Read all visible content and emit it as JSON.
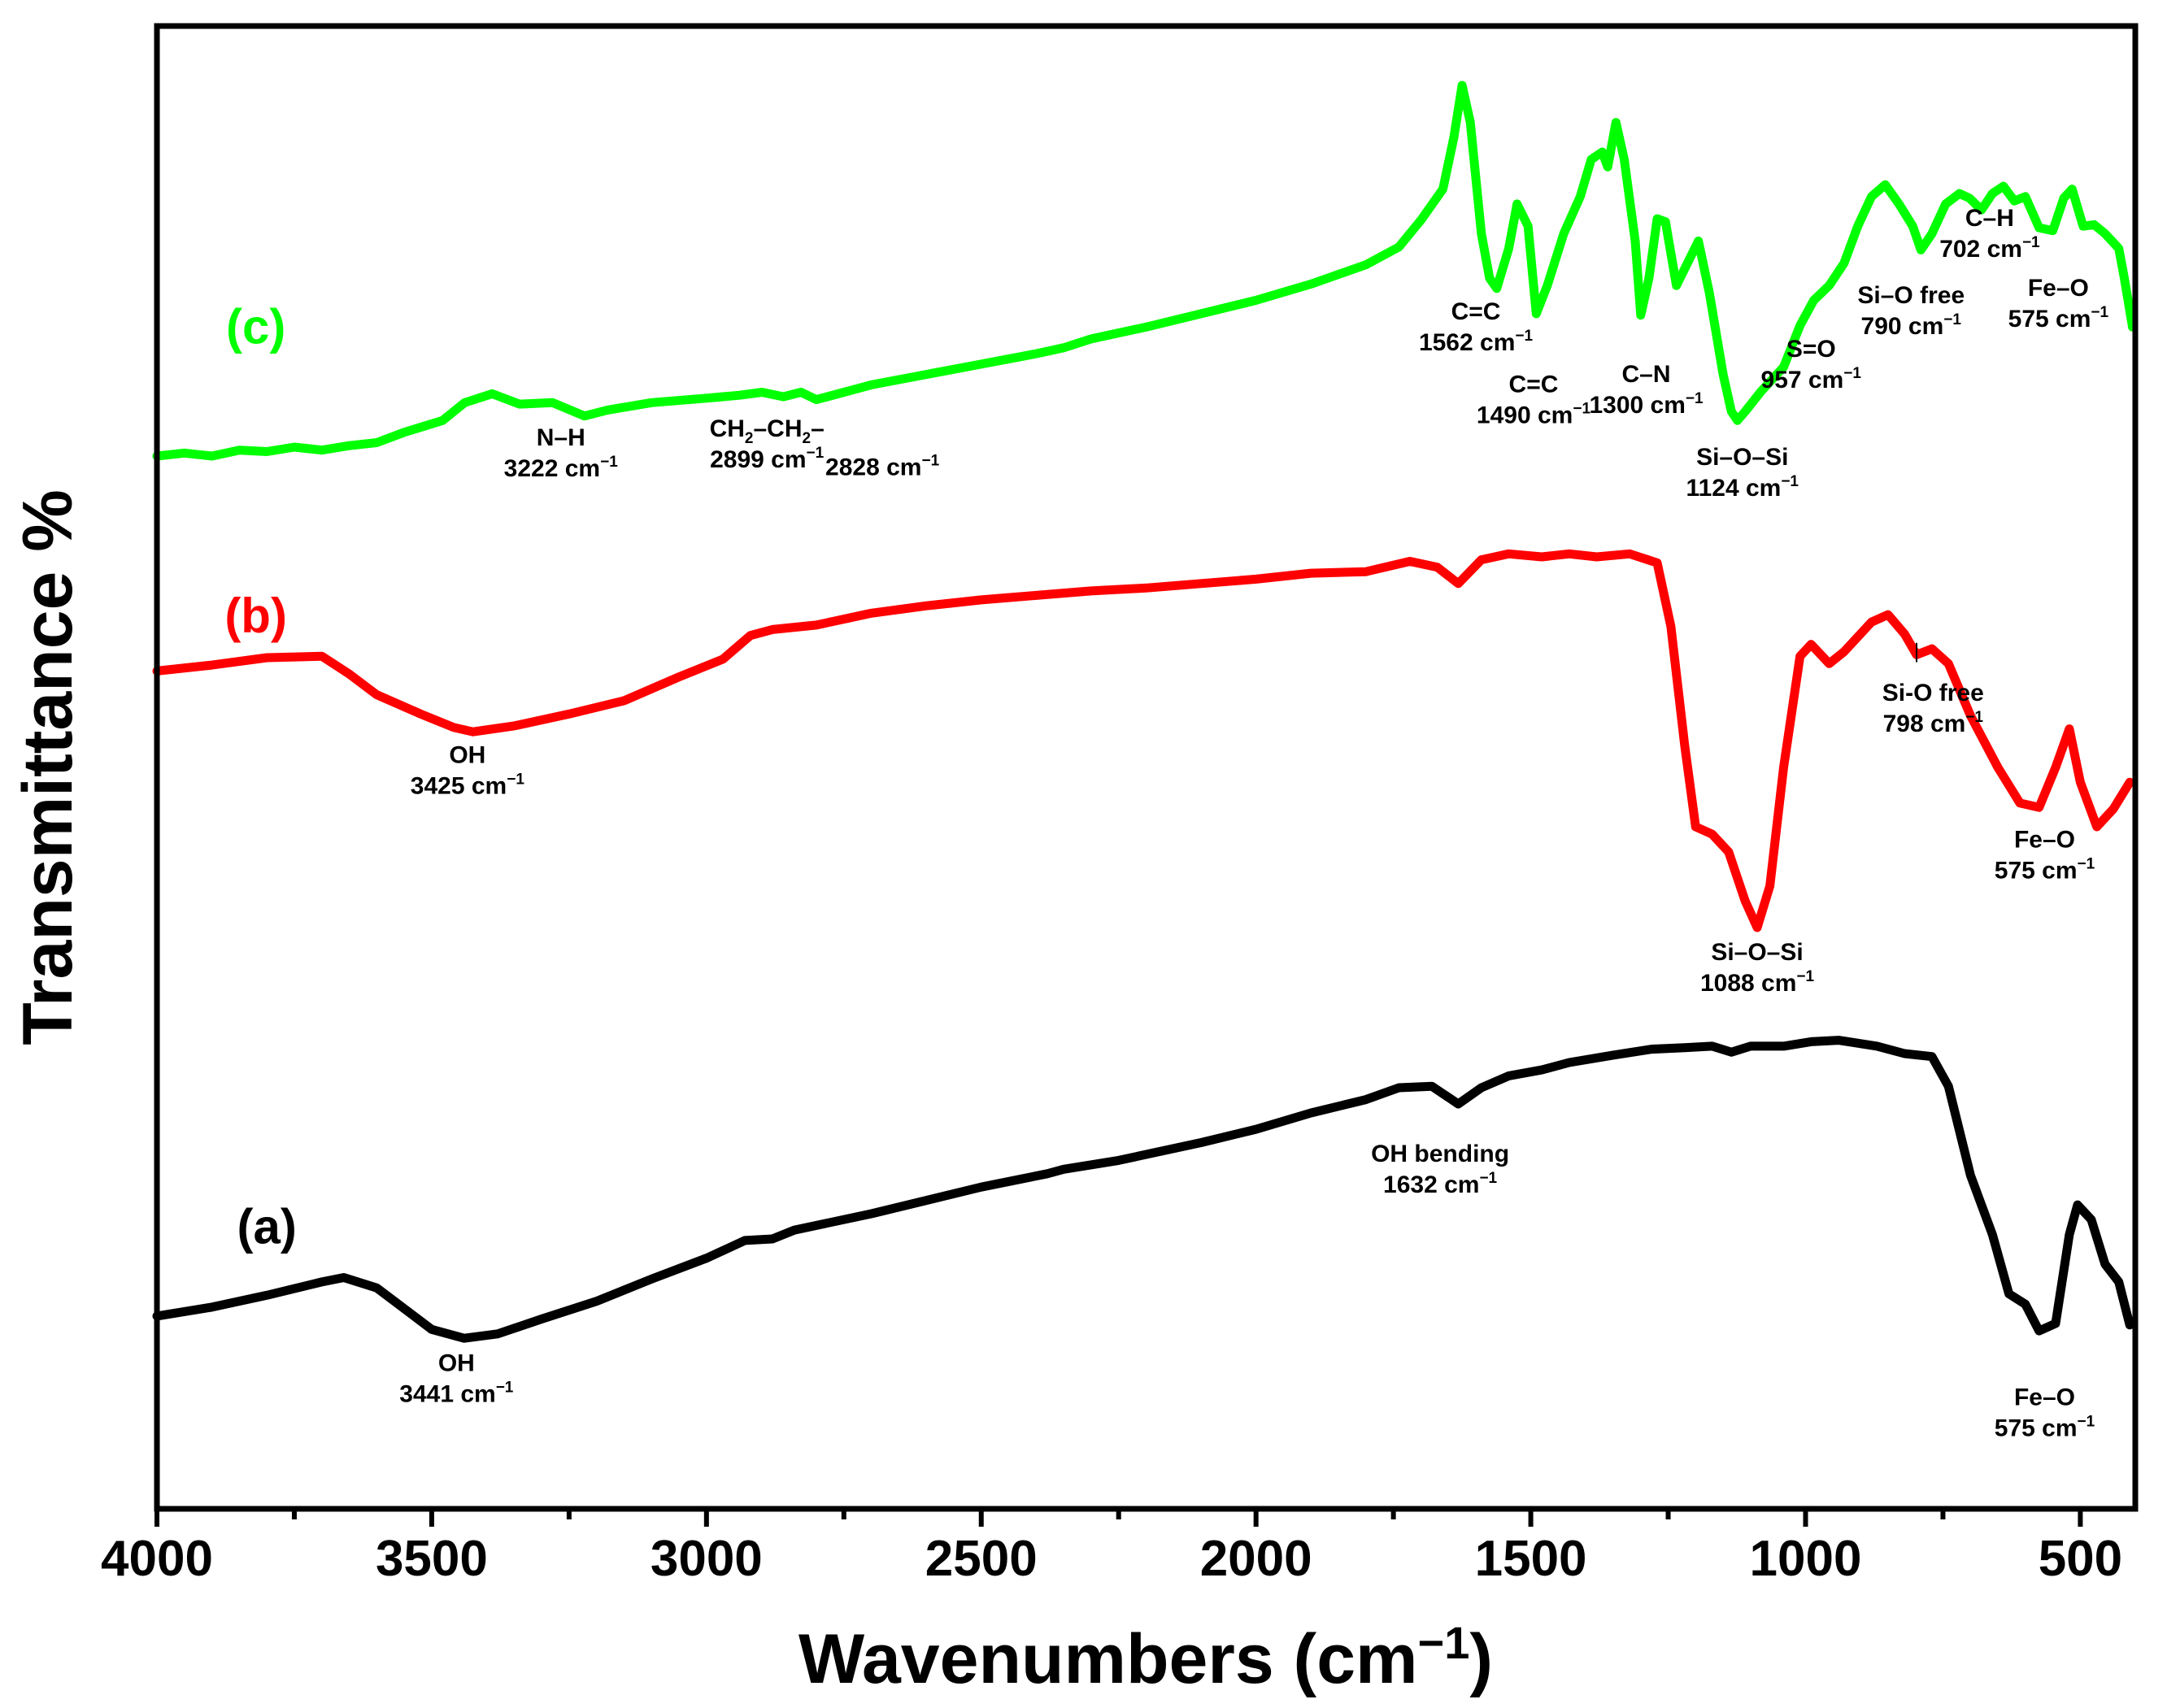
{
  "chart_data": {
    "type": "line",
    "title": "",
    "xlabel": "Wavenumbers (cm",
    "xlabel_sup": "−1",
    "xlabel_tail": ")",
    "ylabel": "Transmittance %",
    "xlim": [
      4000,
      400
    ],
    "ylim": [
      0,
      100
    ],
    "x_ticks": [
      4000,
      3500,
      3000,
      2500,
      2000,
      1500,
      1000,
      500
    ],
    "x_minor_step": 250,
    "yticks_visible": false,
    "grid": false,
    "legend": "none",
    "series": [
      {
        "name": "(a)",
        "color": "#000000",
        "points": [
          [
            4000,
            13.0
          ],
          [
            3900,
            13.6
          ],
          [
            3800,
            14.4
          ],
          [
            3700,
            15.3
          ],
          [
            3660,
            15.6
          ],
          [
            3600,
            14.9
          ],
          [
            3550,
            13.5
          ],
          [
            3500,
            12.1
          ],
          [
            3441,
            11.5
          ],
          [
            3380,
            11.8
          ],
          [
            3300,
            12.8
          ],
          [
            3200,
            14.0
          ],
          [
            3100,
            15.5
          ],
          [
            3000,
            16.9
          ],
          [
            2930,
            18.1
          ],
          [
            2880,
            18.2
          ],
          [
            2840,
            18.8
          ],
          [
            2700,
            19.9
          ],
          [
            2600,
            20.8
          ],
          [
            2500,
            21.7
          ],
          [
            2380,
            22.6
          ],
          [
            2350,
            22.9
          ],
          [
            2250,
            23.5
          ],
          [
            2100,
            24.7
          ],
          [
            2000,
            25.6
          ],
          [
            1900,
            26.7
          ],
          [
            1800,
            27.6
          ],
          [
            1740,
            28.4
          ],
          [
            1680,
            28.5
          ],
          [
            1632,
            27.3
          ],
          [
            1590,
            28.4
          ],
          [
            1540,
            29.2
          ],
          [
            1480,
            29.6
          ],
          [
            1430,
            30.1
          ],
          [
            1350,
            30.6
          ],
          [
            1280,
            31.0
          ],
          [
            1220,
            31.1
          ],
          [
            1170,
            31.2
          ],
          [
            1135,
            30.8
          ],
          [
            1100,
            31.2
          ],
          [
            1040,
            31.2
          ],
          [
            990,
            31.5
          ],
          [
            940,
            31.6
          ],
          [
            870,
            31.2
          ],
          [
            820,
            30.7
          ],
          [
            770,
            30.5
          ],
          [
            740,
            28.5
          ],
          [
            700,
            22.5
          ],
          [
            660,
            18.5
          ],
          [
            630,
            14.5
          ],
          [
            600,
            13.8
          ],
          [
            575,
            12.0
          ],
          [
            545,
            12.5
          ],
          [
            520,
            18.5
          ],
          [
            505,
            20.5
          ],
          [
            480,
            19.5
          ],
          [
            455,
            16.5
          ],
          [
            430,
            15.3
          ],
          [
            410,
            12.4
          ]
        ]
      },
      {
        "name": "(b)",
        "color": "#ff0000",
        "points": [
          [
            4000,
            56.5
          ],
          [
            3900,
            56.9
          ],
          [
            3800,
            57.4
          ],
          [
            3700,
            57.5
          ],
          [
            3650,
            56.3
          ],
          [
            3600,
            54.9
          ],
          [
            3520,
            53.6
          ],
          [
            3460,
            52.7
          ],
          [
            3425,
            52.4
          ],
          [
            3350,
            52.8
          ],
          [
            3250,
            53.6
          ],
          [
            3150,
            54.5
          ],
          [
            3050,
            56.1
          ],
          [
            2970,
            57.3
          ],
          [
            2920,
            58.9
          ],
          [
            2880,
            59.3
          ],
          [
            2800,
            59.6
          ],
          [
            2700,
            60.4
          ],
          [
            2600,
            60.9
          ],
          [
            2500,
            61.3
          ],
          [
            2400,
            61.6
          ],
          [
            2300,
            61.9
          ],
          [
            2200,
            62.1
          ],
          [
            2100,
            62.4
          ],
          [
            2000,
            62.7
          ],
          [
            1900,
            63.1
          ],
          [
            1800,
            63.2
          ],
          [
            1720,
            63.9
          ],
          [
            1670,
            63.5
          ],
          [
            1632,
            62.4
          ],
          [
            1590,
            64.0
          ],
          [
            1540,
            64.4
          ],
          [
            1480,
            64.2
          ],
          [
            1430,
            64.4
          ],
          [
            1380,
            64.2
          ],
          [
            1320,
            64.4
          ],
          [
            1270,
            63.8
          ],
          [
            1245,
            59.5
          ],
          [
            1220,
            51.5
          ],
          [
            1200,
            46.0
          ],
          [
            1170,
            45.5
          ],
          [
            1140,
            44.3
          ],
          [
            1110,
            41.0
          ],
          [
            1088,
            39.2
          ],
          [
            1065,
            42.0
          ],
          [
            1040,
            50.0
          ],
          [
            1010,
            57.5
          ],
          [
            990,
            58.3
          ],
          [
            957,
            57.0
          ],
          [
            930,
            57.8
          ],
          [
            880,
            59.8
          ],
          [
            850,
            60.3
          ],
          [
            820,
            59.0
          ],
          [
            798,
            57.6
          ],
          [
            770,
            58.0
          ],
          [
            740,
            57.0
          ],
          [
            700,
            53.5
          ],
          [
            650,
            50.0
          ],
          [
            610,
            47.6
          ],
          [
            575,
            47.3
          ],
          [
            545,
            50.0
          ],
          [
            520,
            52.6
          ],
          [
            500,
            49.0
          ],
          [
            470,
            46.0
          ],
          [
            440,
            47.2
          ],
          [
            410,
            49.0
          ]
        ]
      },
      {
        "name": "(c)",
        "color": "#00ff00",
        "points": [
          [
            4000,
            71.0
          ],
          [
            3950,
            71.2
          ],
          [
            3900,
            71.0
          ],
          [
            3850,
            71.4
          ],
          [
            3800,
            71.3
          ],
          [
            3750,
            71.6
          ],
          [
            3700,
            71.4
          ],
          [
            3650,
            71.7
          ],
          [
            3600,
            71.9
          ],
          [
            3550,
            72.6
          ],
          [
            3480,
            73.4
          ],
          [
            3440,
            74.6
          ],
          [
            3390,
            75.2
          ],
          [
            3340,
            74.5
          ],
          [
            3280,
            74.6
          ],
          [
            3222,
            73.7
          ],
          [
            3180,
            74.1
          ],
          [
            3100,
            74.6
          ],
          [
            3000,
            74.9
          ],
          [
            2940,
            75.1
          ],
          [
            2899,
            75.3
          ],
          [
            2860,
            75.0
          ],
          [
            2828,
            75.3
          ],
          [
            2800,
            74.8
          ],
          [
            2700,
            75.8
          ],
          [
            2600,
            76.5
          ],
          [
            2500,
            77.2
          ],
          [
            2400,
            77.9
          ],
          [
            2350,
            78.3
          ],
          [
            2300,
            78.9
          ],
          [
            2200,
            79.7
          ],
          [
            2100,
            80.6
          ],
          [
            2000,
            81.5
          ],
          [
            1900,
            82.6
          ],
          [
            1800,
            83.9
          ],
          [
            1740,
            85.1
          ],
          [
            1700,
            86.9
          ],
          [
            1660,
            89.0
          ],
          [
            1640,
            92.5
          ],
          [
            1625,
            96.0
          ],
          [
            1610,
            93.5
          ],
          [
            1590,
            86.0
          ],
          [
            1575,
            83.0
          ],
          [
            1562,
            82.3
          ],
          [
            1540,
            85.0
          ],
          [
            1525,
            88.0
          ],
          [
            1505,
            86.5
          ],
          [
            1490,
            80.6
          ],
          [
            1470,
            82.5
          ],
          [
            1440,
            86.0
          ],
          [
            1410,
            88.5
          ],
          [
            1390,
            91.0
          ],
          [
            1370,
            91.5
          ],
          [
            1360,
            90.5
          ],
          [
            1345,
            93.5
          ],
          [
            1330,
            91.0
          ],
          [
            1310,
            85.5
          ],
          [
            1300,
            80.5
          ],
          [
            1285,
            83.0
          ],
          [
            1270,
            87.0
          ],
          [
            1255,
            86.8
          ],
          [
            1235,
            82.5
          ],
          [
            1215,
            84.0
          ],
          [
            1195,
            85.5
          ],
          [
            1175,
            82.0
          ],
          [
            1150,
            76.5
          ],
          [
            1135,
            74.0
          ],
          [
            1124,
            73.4
          ],
          [
            1110,
            74.0
          ],
          [
            1080,
            75.4
          ],
          [
            1040,
            77.0
          ],
          [
            1010,
            79.8
          ],
          [
            985,
            81.5
          ],
          [
            957,
            82.5
          ],
          [
            930,
            84.0
          ],
          [
            905,
            86.5
          ],
          [
            880,
            88.5
          ],
          [
            855,
            89.3
          ],
          [
            830,
            88.0
          ],
          [
            805,
            86.5
          ],
          [
            790,
            84.9
          ],
          [
            770,
            86.0
          ],
          [
            745,
            88.0
          ],
          [
            720,
            88.7
          ],
          [
            702,
            88.4
          ],
          [
            680,
            87.6
          ],
          [
            660,
            88.7
          ],
          [
            640,
            89.2
          ],
          [
            620,
            88.2
          ],
          [
            600,
            88.5
          ],
          [
            575,
            86.4
          ],
          [
            550,
            86.2
          ],
          [
            530,
            88.4
          ],
          [
            515,
            89.0
          ],
          [
            495,
            86.5
          ],
          [
            475,
            86.6
          ],
          [
            455,
            86.0
          ],
          [
            430,
            85.0
          ],
          [
            420,
            83.0
          ],
          [
            405,
            79.7
          ]
        ]
      }
    ],
    "series_labels": [
      {
        "id": "a",
        "text": "(a)",
        "color": "#000000",
        "x": 3800,
        "y": 17.9
      },
      {
        "id": "b",
        "text": "(b)",
        "color": "#ff0000",
        "x": 3820,
        "y": 59.1
      },
      {
        "id": "c",
        "text": "(c)",
        "color": "#00ff00",
        "x": 3820,
        "y": 78.6
      }
    ],
    "annotations": [
      {
        "id": "a-oh",
        "line1": "OH",
        "line2": "3441 cm",
        "sup": "−1",
        "x": 3455,
        "y": 9.3
      },
      {
        "id": "a-ohbend",
        "line1": "OH bending",
        "line2": "1632 cm",
        "sup": "−1",
        "x": 1665,
        "y": 23.4
      },
      {
        "id": "a-feo",
        "line1": "Fe–O",
        "line2": "575 cm",
        "sup": "−1",
        "x": 565,
        "y": 7.0
      },
      {
        "id": "b-oh",
        "line1": "OH",
        "line2": "3425 cm",
        "sup": "−1",
        "x": 3435,
        "y": 50.3
      },
      {
        "id": "b-siosi",
        "line1": "Si–O–Si",
        "line2": "1088 cm",
        "sup": "−1",
        "x": 1088,
        "y": 37.0
      },
      {
        "id": "b-sio",
        "line1": "Si-O free",
        "line2": "798 cm",
        "sup": "−1",
        "x": 768,
        "y": 54.5,
        "tick_x": 798,
        "tick_y0": 57.1,
        "tick_y1": 58.4
      },
      {
        "id": "b-feo",
        "line1": "Fe–O",
        "line2": "575 cm",
        "sup": "−1",
        "x": 565,
        "y": 44.6
      },
      {
        "id": "c-nh",
        "line1": "N–H",
        "line2": "3222 cm",
        "sup": "−1",
        "x": 3265,
        "y": 71.7
      },
      {
        "id": "c-ch2",
        "line1": "CH",
        "line2": "2899 cm",
        "sup": "−1",
        "x": 2890,
        "y": 72.3,
        "formula": true
      },
      {
        "id": "c-2828",
        "line1": "",
        "line2": "2828 cm",
        "sup": "−1",
        "x": 2680,
        "y": 69.7
      },
      {
        "id": "c-cc1",
        "line1": "C=C",
        "line2": "1562 cm",
        "sup": "−1",
        "x": 1600,
        "y": 80.2
      },
      {
        "id": "c-cc2",
        "line1": "C=C",
        "line2": "1490 cm",
        "sup": "−1",
        "x": 1495,
        "y": 75.3
      },
      {
        "id": "c-cn",
        "line1": "C–N",
        "line2": "1300 cm",
        "sup": "−1",
        "x": 1290,
        "y": 76.0
      },
      {
        "id": "c-siosi",
        "line1": "Si–O–Si",
        "line2": "1124 cm",
        "sup": "−1",
        "x": 1115,
        "y": 70.4
      },
      {
        "id": "c-so",
        "line1": "S=O",
        "line2": "957 cm",
        "sup": "−1",
        "x": 990,
        "y": 77.7
      },
      {
        "id": "c-sio",
        "line1": "Si–O free",
        "line2": "790 cm",
        "sup": "−1",
        "x": 808,
        "y": 81.3
      },
      {
        "id": "c-ch",
        "line1": "C–H",
        "line2": "702 cm",
        "sup": "−1",
        "x": 665,
        "y": 86.5
      },
      {
        "id": "c-feo",
        "line1": "Fe–O",
        "line2": "575 cm",
        "sup": "−1",
        "x": 540,
        "y": 81.8
      }
    ]
  }
}
